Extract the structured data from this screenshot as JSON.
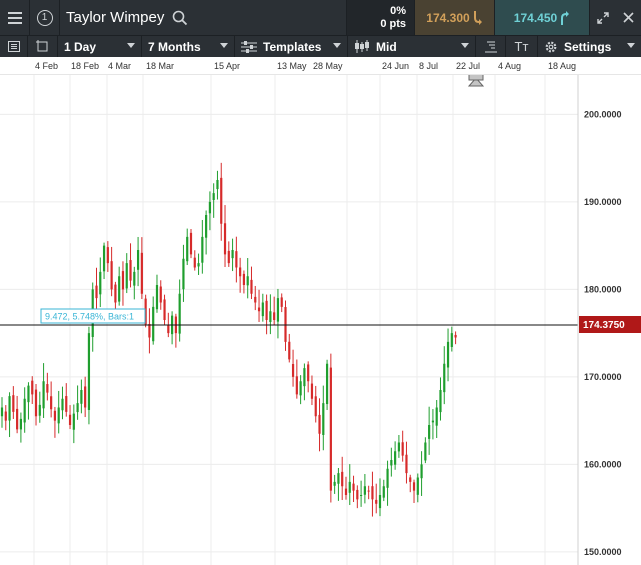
{
  "header": {
    "instrument": "Taylor Wimpey",
    "change_pct": "0%",
    "change_pts": "0 pts",
    "sell_price": "174.300",
    "buy_price": "174.450"
  },
  "toolbar": {
    "interval": "1 Day",
    "range": "7 Months",
    "templates_label": "Templates",
    "price_type": "Mid",
    "settings_label": "Settings",
    "text_tool_label": "Tт"
  },
  "date_axis": [
    "4 Feb",
    "18 Feb",
    "4 Mar",
    "18 Mar",
    "15 Apr",
    "13 May",
    "28 May",
    "24 Jun",
    "8 Jul",
    "22 Jul",
    "4 Aug",
    "18 Aug"
  ],
  "price_axis": [
    "200.0000",
    "190.0000",
    "180.0000",
    "170.0000",
    "160.0000",
    "150.0000"
  ],
  "current_price": "174.3750",
  "measure_tooltip": "9.472, 5.748%, Bars:1",
  "colors": {
    "up": "#1f9e2e",
    "down": "#d62a2a",
    "price_tag": "#b01818",
    "buy": "#6fd1d6",
    "sell": "#d2a05a"
  },
  "chart_data": {
    "type": "candlestick",
    "y_range": [
      148.5,
      204.5
    ],
    "series_price": [
      166.5,
      165.0,
      167.8,
      166.0,
      164.0,
      165.2,
      167.5,
      169.0,
      168.0,
      165.5,
      166.8,
      169.5,
      168.2,
      166.3,
      165.0,
      166.5,
      167.5,
      166.0,
      164.5,
      165.8,
      167.0,
      168.5,
      166.5,
      175.0,
      180.0,
      179.0,
      182.0,
      185.0,
      183.0,
      180.0,
      178.5,
      181.5,
      180.0,
      183.0,
      181.0,
      182.0,
      184.5,
      179.5,
      176.0,
      174.5,
      178.0,
      180.5,
      178.5,
      176.5,
      175.0,
      177.0,
      175.0,
      179.5,
      183.5,
      186.0,
      184.0,
      182.5,
      183.0,
      186.0,
      188.5,
      190.0,
      191.0,
      192.5,
      187.5,
      184.0,
      183.0,
      184.5,
      182.5,
      181.5,
      180.5,
      181.5,
      179.5,
      178.5,
      177.5,
      178.5,
      176.5,
      177.5,
      176.5,
      179.0,
      178.0,
      174.0,
      172.0,
      170.0,
      168.0,
      169.5,
      171.0,
      169.5,
      167.5,
      165.5,
      163.5,
      167.0,
      171.5,
      157.0,
      158.0,
      159.0,
      157.5,
      156.5,
      158.0,
      157.0,
      156.0,
      156.5,
      157.5,
      157.0,
      156.0,
      155.5,
      156.5,
      157.5,
      159.5,
      160.5,
      161.5,
      162.5,
      161.0,
      159.0,
      158.0,
      157.0,
      158.5,
      160.0,
      162.5,
      164.5,
      165.0,
      166.5,
      168.5,
      171.5,
      174.0,
      175.0,
      174.5
    ]
  }
}
